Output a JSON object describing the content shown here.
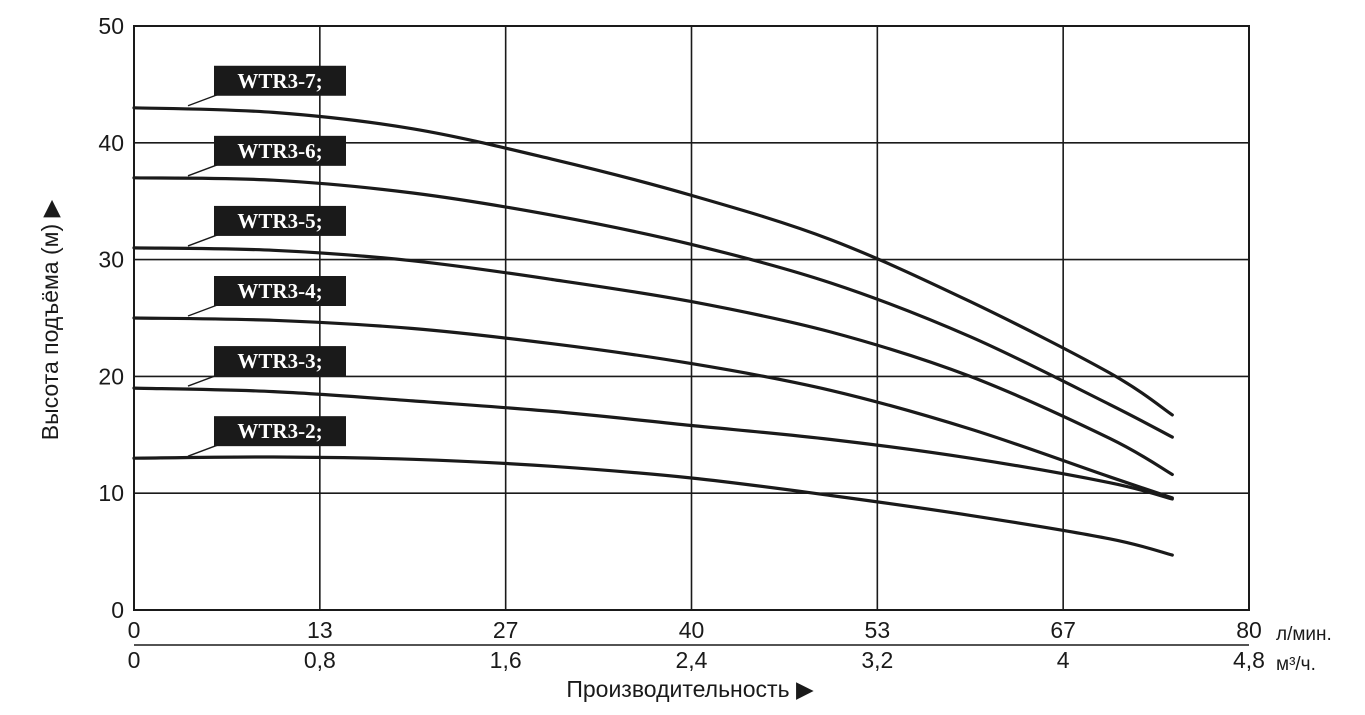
{
  "chart_data": {
    "type": "line",
    "ylabel": "Высота подъёма (м) ▶",
    "xlabel": "Производительность ▶",
    "ylim": [
      0,
      50
    ],
    "xlim": [
      0,
      80
    ],
    "yticks": [
      "0",
      "10",
      "20",
      "30",
      "40",
      "50"
    ],
    "xticks_top": [
      "0",
      "13",
      "27",
      "40",
      "53",
      "67",
      "80"
    ],
    "xticks_top_unit": "л/мин.",
    "xticks_bottom": [
      "0",
      "0,8",
      "1,6",
      "2,4",
      "3,2",
      "4",
      "4,8"
    ],
    "xticks_bottom_unit": "м³/ч.",
    "grid": true,
    "x": [
      0,
      10,
      20,
      30,
      40,
      50,
      60,
      70,
      74.5
    ],
    "series": [
      {
        "name": "WTR3-7;",
        "values": [
          43,
          42.6,
          41.2,
          38.6,
          35.5,
          31.7,
          26.4,
          20.3,
          16.7
        ]
      },
      {
        "name": "WTR3-6;",
        "values": [
          37,
          36.8,
          35.7,
          33.8,
          31.3,
          28.0,
          23.4,
          17.6,
          14.8
        ]
      },
      {
        "name": "WTR3-5;",
        "values": [
          31,
          30.8,
          29.9,
          28.3,
          26.4,
          23.8,
          20.0,
          14.7,
          11.6
        ]
      },
      {
        "name": "WTR3-4;",
        "values": [
          25,
          24.8,
          24.1,
          22.8,
          21.1,
          18.8,
          15.5,
          11.4,
          9.6
        ]
      },
      {
        "name": "WTR3-3;",
        "values": [
          19,
          18.7,
          17.9,
          17.0,
          15.8,
          14.6,
          13.0,
          10.9,
          9.5
        ]
      },
      {
        "name": "WTR3-2;",
        "values": [
          13,
          13.1,
          12.9,
          12.3,
          11.3,
          9.8,
          8.1,
          6.1,
          4.7
        ]
      }
    ]
  }
}
